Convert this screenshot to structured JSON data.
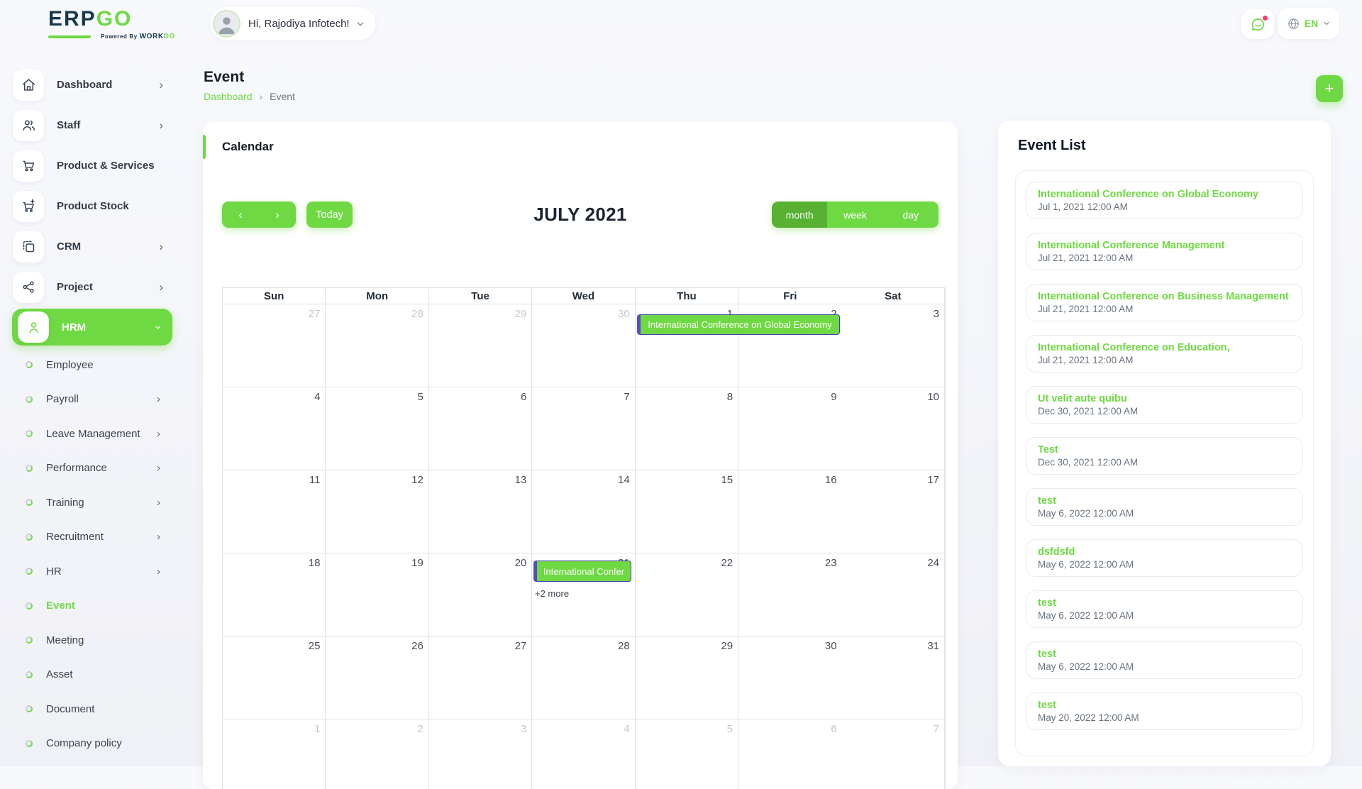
{
  "colors": {
    "accent_green": "#6fd943",
    "active_view_green": "#58b133",
    "event_border_purple": "#4540ae",
    "logo_navy": "#16384e"
  },
  "header": {
    "logo": {
      "text_primary": "ERP",
      "text_secondary": "GO",
      "tagline_prefix": "Powered By",
      "tagline_brand_1": "WORK",
      "tagline_brand_2": "DO"
    },
    "user_greeting": "Hi, Rajodiya Infotech!",
    "language": "EN"
  },
  "sidebar": {
    "items": [
      {
        "label": "Dashboard",
        "icon": "home-icon",
        "chevron": true
      },
      {
        "label": "Staff",
        "icon": "users-icon",
        "chevron": true
      },
      {
        "label": "Product & Services",
        "icon": "cart-icon",
        "chevron": false
      },
      {
        "label": "Product Stock",
        "icon": "cart-plus-icon",
        "chevron": false
      },
      {
        "label": "CRM",
        "icon": "frame-icon",
        "chevron": true
      },
      {
        "label": "Project",
        "icon": "share-icon",
        "chevron": true
      },
      {
        "label": "HRM",
        "icon": "user-icon",
        "chevron": true,
        "chevron_down": true,
        "active": true
      }
    ],
    "hrm_subitems": [
      {
        "label": "Employee",
        "chevron": false
      },
      {
        "label": "Payroll",
        "chevron": true
      },
      {
        "label": "Leave Management",
        "chevron": true
      },
      {
        "label": "Performance",
        "chevron": true
      },
      {
        "label": "Training",
        "chevron": true
      },
      {
        "label": "Recruitment",
        "chevron": true
      },
      {
        "label": "HR",
        "chevron": true
      },
      {
        "label": "Event",
        "chevron": false,
        "active": true
      },
      {
        "label": "Meeting",
        "chevron": false
      },
      {
        "label": "Asset",
        "chevron": false
      },
      {
        "label": "Document",
        "chevron": false
      },
      {
        "label": "Company policy",
        "chevron": false
      }
    ]
  },
  "page": {
    "title": "Event",
    "breadcrumb": [
      "Dashboard",
      "Event"
    ],
    "add_button_icon": "plus-icon"
  },
  "calendar": {
    "card_title": "Calendar",
    "today_button": "Today",
    "title": "JULY 2021",
    "views": [
      {
        "label": "month",
        "active": true
      },
      {
        "label": "week"
      },
      {
        "label": "day"
      }
    ],
    "day_headers": [
      "Sun",
      "Mon",
      "Tue",
      "Wed",
      "Thu",
      "Fri",
      "Sat"
    ],
    "cells": [
      {
        "d": 27,
        "muted": true
      },
      {
        "d": 28,
        "muted": true
      },
      {
        "d": 29,
        "muted": true
      },
      {
        "d": 30,
        "muted": true
      },
      {
        "d": 1
      },
      {
        "d": 2
      },
      {
        "d": 3
      },
      {
        "d": 4
      },
      {
        "d": 5
      },
      {
        "d": 6
      },
      {
        "d": 7
      },
      {
        "d": 8
      },
      {
        "d": 9
      },
      {
        "d": 10
      },
      {
        "d": 11
      },
      {
        "d": 12
      },
      {
        "d": 13
      },
      {
        "d": 14
      },
      {
        "d": 15
      },
      {
        "d": 16
      },
      {
        "d": 17
      },
      {
        "d": 18
      },
      {
        "d": 19
      },
      {
        "d": 20
      },
      {
        "d": 21
      },
      {
        "d": 22
      },
      {
        "d": 23
      },
      {
        "d": 24
      },
      {
        "d": 25
      },
      {
        "d": 26
      },
      {
        "d": 27
      },
      {
        "d": 28
      },
      {
        "d": 29
      },
      {
        "d": 30
      },
      {
        "d": 31
      },
      {
        "d": 1,
        "muted": true
      },
      {
        "d": 2,
        "muted": true
      },
      {
        "d": 3,
        "muted": true
      },
      {
        "d": 4,
        "muted": true
      },
      {
        "d": 5,
        "muted": true
      },
      {
        "d": 6,
        "muted": true
      },
      {
        "d": 7,
        "muted": true
      }
    ],
    "events": [
      {
        "title": "International Conference on Global Economy"
      },
      {
        "title": "International Confer"
      }
    ],
    "more_label": "+2 more"
  },
  "event_list": {
    "heading": "Event List",
    "items": [
      {
        "title": "International Conference on Global Economy",
        "date": "Jul 1, 2021 12:00 AM"
      },
      {
        "title": "International Conference Management",
        "date": "Jul 21, 2021 12:00 AM"
      },
      {
        "title": "International Conference on Business Management",
        "date": "Jul 21, 2021 12:00 AM"
      },
      {
        "title": "International Conference on Education,",
        "date": "Jul 21, 2021 12:00 AM"
      },
      {
        "title": "Ut velit aute quibu",
        "date": "Dec 30, 2021 12:00 AM"
      },
      {
        "title": "Test",
        "date": "Dec 30, 2021 12:00 AM"
      },
      {
        "title": "test",
        "date": "May 6, 2022 12:00 AM"
      },
      {
        "title": "dsfdsfd",
        "date": "May 6, 2022 12:00 AM"
      },
      {
        "title": "test",
        "date": "May 6, 2022 12:00 AM"
      },
      {
        "title": "test",
        "date": "May 6, 2022 12:00 AM"
      },
      {
        "title": "test",
        "date": "May 20, 2022 12:00 AM"
      }
    ]
  }
}
